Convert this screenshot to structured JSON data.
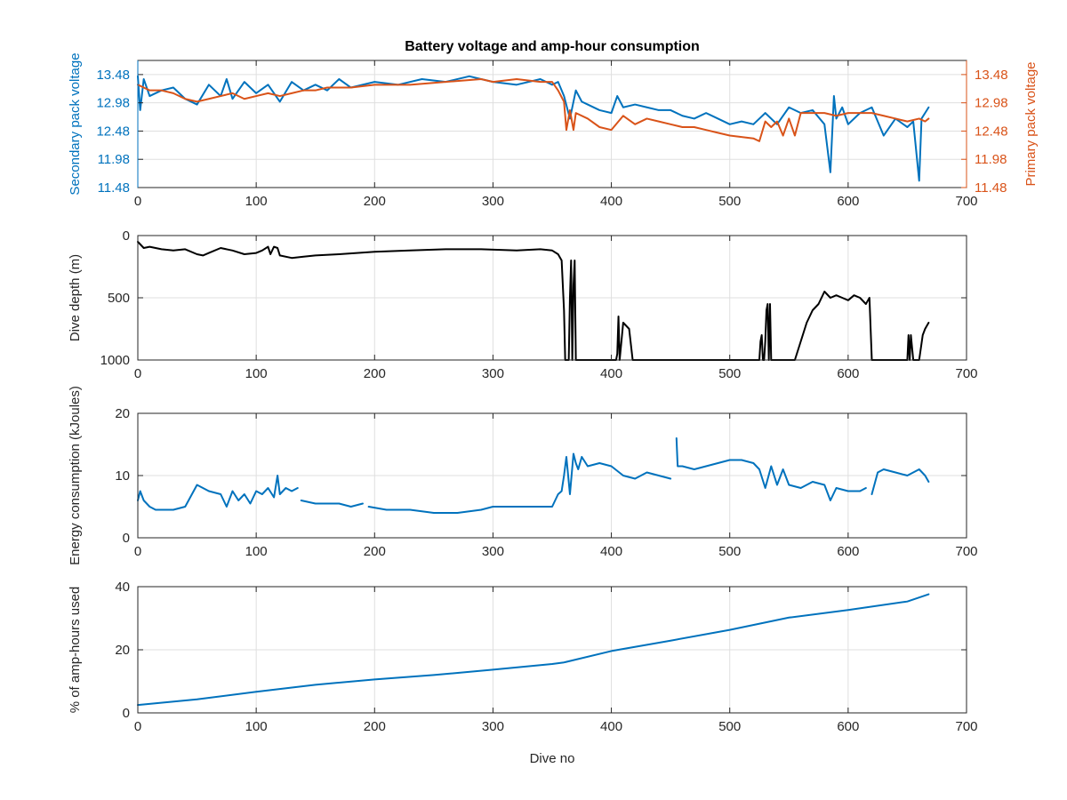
{
  "title": "Battery voltage and amp-hour consumption",
  "colors": {
    "blue": "#0072BD",
    "orange": "#D95319",
    "black": "#000000"
  },
  "chart_data": [
    {
      "type": "line",
      "ylabel": "Secondary pack voltage",
      "y2label": "Primary pack voltage",
      "xlim": [
        0,
        700
      ],
      "xticks": [
        "0",
        "100",
        "200",
        "300",
        "400",
        "500",
        "600",
        "700"
      ],
      "ylim": [
        11.48,
        13.73
      ],
      "yticks": [
        "11.48",
        "11.98",
        "12.48",
        "12.98",
        "13.48"
      ],
      "y2ticks": [
        "11.48",
        "11.98",
        "12.48",
        "12.98",
        "13.48"
      ],
      "grid": true,
      "series": [
        {
          "axis": "left",
          "color": "#0072BD",
          "x": [
            0,
            2,
            5,
            10,
            20,
            30,
            40,
            50,
            60,
            70,
            75,
            80,
            90,
            100,
            110,
            120,
            130,
            140,
            150,
            160,
            170,
            180,
            200,
            220,
            240,
            260,
            280,
            300,
            320,
            340,
            350,
            355,
            360,
            365,
            370,
            375,
            380,
            390,
            400,
            405,
            410,
            420,
            430,
            440,
            450,
            460,
            470,
            480,
            490,
            500,
            510,
            520,
            530,
            540,
            550,
            560,
            570,
            580,
            585,
            588,
            590,
            595,
            600,
            610,
            620,
            630,
            640,
            650,
            655,
            660,
            662,
            665,
            668
          ],
          "y": [
            13.45,
            12.85,
            13.4,
            13.1,
            13.2,
            13.25,
            13.05,
            12.95,
            13.3,
            13.1,
            13.4,
            13.05,
            13.35,
            13.15,
            13.3,
            13.0,
            13.35,
            13.2,
            13.3,
            13.2,
            13.4,
            13.25,
            13.35,
            13.3,
            13.4,
            13.35,
            13.45,
            13.35,
            13.3,
            13.4,
            13.3,
            13.35,
            13.1,
            12.7,
            13.2,
            13.0,
            12.95,
            12.85,
            12.8,
            13.1,
            12.9,
            12.95,
            12.9,
            12.85,
            12.85,
            12.75,
            12.7,
            12.8,
            12.7,
            12.6,
            12.65,
            12.6,
            12.8,
            12.6,
            12.9,
            12.8,
            12.85,
            12.6,
            11.75,
            13.1,
            12.7,
            12.9,
            12.6,
            12.8,
            12.9,
            12.4,
            12.7,
            12.55,
            12.65,
            11.6,
            12.7,
            12.8,
            12.9
          ]
        },
        {
          "axis": "right",
          "color": "#D95319",
          "x": [
            0,
            5,
            10,
            20,
            30,
            40,
            50,
            60,
            70,
            80,
            90,
            100,
            110,
            120,
            130,
            140,
            150,
            160,
            180,
            200,
            230,
            260,
            290,
            300,
            320,
            340,
            350,
            355,
            360,
            362,
            365,
            368,
            370,
            380,
            390,
            400,
            410,
            420,
            430,
            440,
            450,
            460,
            470,
            480,
            490,
            500,
            520,
            525,
            530,
            535,
            540,
            545,
            550,
            555,
            560,
            570,
            580,
            590,
            600,
            610,
            620,
            630,
            640,
            650,
            660,
            665,
            668
          ],
          "y": [
            13.3,
            13.25,
            13.2,
            13.2,
            13.15,
            13.05,
            13.0,
            13.05,
            13.1,
            13.15,
            13.05,
            13.1,
            13.15,
            13.1,
            13.15,
            13.2,
            13.2,
            13.25,
            13.25,
            13.3,
            13.3,
            13.35,
            13.4,
            13.35,
            13.4,
            13.35,
            13.35,
            13.2,
            13.0,
            12.5,
            12.85,
            12.5,
            12.8,
            12.7,
            12.55,
            12.5,
            12.75,
            12.6,
            12.7,
            12.65,
            12.6,
            12.55,
            12.55,
            12.5,
            12.45,
            12.4,
            12.35,
            12.3,
            12.65,
            12.55,
            12.65,
            12.4,
            12.7,
            12.4,
            12.8,
            12.8,
            12.8,
            12.75,
            12.8,
            12.8,
            12.8,
            12.75,
            12.7,
            12.65,
            12.7,
            12.65,
            12.7
          ]
        }
      ]
    },
    {
      "type": "line",
      "ylabel": "Dive depth (m)",
      "xlim": [
        0,
        700
      ],
      "xticks": [
        "0",
        "100",
        "200",
        "300",
        "400",
        "500",
        "600",
        "700"
      ],
      "ylim": [
        1000,
        0
      ],
      "yticks": [
        "0",
        "500",
        "1000"
      ],
      "y_reversed": true,
      "grid": true,
      "series": [
        {
          "axis": "left",
          "color": "#000000",
          "x": [
            0,
            5,
            10,
            20,
            30,
            40,
            50,
            55,
            60,
            70,
            80,
            90,
            100,
            105,
            110,
            112,
            115,
            118,
            120,
            130,
            140,
            150,
            170,
            200,
            230,
            260,
            290,
            320,
            340,
            350,
            355,
            358,
            360,
            361,
            362,
            363,
            364,
            365,
            366,
            367,
            368,
            369,
            370,
            380,
            390,
            400,
            404,
            405,
            406,
            407,
            410,
            415,
            418,
            420,
            430,
            440,
            450,
            460,
            470,
            480,
            490,
            500,
            510,
            520,
            525,
            526,
            527,
            528,
            529,
            530,
            531,
            532,
            533,
            534,
            535,
            536,
            540,
            550,
            553,
            555,
            560,
            565,
            570,
            575,
            580,
            585,
            590,
            595,
            600,
            605,
            610,
            615,
            618,
            620,
            630,
            640,
            650,
            651,
            652,
            653,
            655,
            660,
            663,
            665,
            668
          ],
          "y": [
            50,
            100,
            90,
            110,
            120,
            110,
            150,
            160,
            140,
            100,
            120,
            150,
            140,
            120,
            90,
            150,
            90,
            100,
            160,
            180,
            170,
            160,
            150,
            130,
            120,
            110,
            110,
            120,
            110,
            120,
            150,
            200,
            600,
            1000,
            1000,
            1000,
            1000,
            500,
            200,
            1000,
            400,
            200,
            1000,
            1000,
            1000,
            1000,
            1000,
            950,
            650,
            1000,
            700,
            750,
            1000,
            1000,
            1000,
            1000,
            1000,
            1000,
            1000,
            1000,
            1000,
            1000,
            1000,
            1000,
            1000,
            850,
            800,
            1000,
            1000,
            850,
            600,
            550,
            1000,
            550,
            1000,
            1000,
            1000,
            1000,
            1000,
            1000,
            850,
            700,
            600,
            550,
            450,
            500,
            480,
            500,
            520,
            480,
            500,
            550,
            500,
            1000,
            1000,
            1000,
            1000,
            800,
            1000,
            800,
            1000,
            1000,
            800,
            750,
            700
          ]
        }
      ]
    },
    {
      "type": "line",
      "ylabel": "Energy consumption (kJoules)",
      "xlim": [
        0,
        700
      ],
      "xticks": [
        "0",
        "100",
        "200",
        "300",
        "400",
        "500",
        "600",
        "700"
      ],
      "ylim": [
        0,
        20
      ],
      "yticks": [
        "0",
        "10",
        "20"
      ],
      "grid": true,
      "series": [
        {
          "axis": "left",
          "color": "#0072BD",
          "x": [
            0,
            2,
            5,
            10,
            15,
            20,
            30,
            40,
            50,
            60,
            70,
            75,
            80,
            85,
            90,
            95,
            100,
            105,
            110,
            115,
            118,
            120,
            125,
            130,
            135,
            null,
            138,
            150,
            170,
            180,
            190,
            null,
            195,
            210,
            230,
            250,
            270,
            290,
            300,
            320,
            340,
            350,
            355,
            358,
            360,
            362,
            365,
            368,
            370,
            372,
            375,
            380,
            390,
            400,
            410,
            420,
            430,
            440,
            450,
            null,
            455,
            456,
            460,
            470,
            480,
            490,
            500,
            510,
            520,
            525,
            530,
            535,
            540,
            545,
            550,
            560,
            570,
            580,
            585,
            590,
            600,
            610,
            615,
            null,
            620,
            625,
            630,
            640,
            650,
            660,
            665,
            668
          ],
          "y": [
            6,
            7.5,
            6,
            5,
            4.5,
            4.5,
            4.5,
            5,
            8.5,
            7.5,
            7,
            5,
            7.5,
            6,
            7,
            5.5,
            7.5,
            7,
            8,
            6.5,
            10,
            7,
            8,
            7.5,
            8,
            null,
            6,
            5.5,
            5.5,
            5,
            5.5,
            null,
            5,
            4.5,
            4.5,
            4,
            4,
            4.5,
            5,
            5,
            5,
            5,
            7,
            7.5,
            10,
            13,
            7,
            13.5,
            12,
            11,
            13,
            11.5,
            12,
            11.5,
            10,
            9.5,
            10.5,
            10,
            9.5,
            null,
            16,
            11.5,
            11.5,
            11,
            11.5,
            12,
            12.5,
            12.5,
            12,
            11,
            8,
            11.5,
            8.5,
            11,
            8.5,
            8,
            9,
            8.5,
            6,
            8,
            7.5,
            7.5,
            8,
            null,
            7,
            10.5,
            11,
            10.5,
            10,
            11,
            10,
            9
          ]
        }
      ]
    },
    {
      "type": "line",
      "ylabel": "% of amp-hours used",
      "xlabel": "Dive no",
      "xlim": [
        0,
        700
      ],
      "xticks": [
        "0",
        "100",
        "200",
        "300",
        "400",
        "500",
        "600",
        "700"
      ],
      "ylim": [
        0,
        40
      ],
      "yticks": [
        "0",
        "20",
        "40"
      ],
      "grid": true,
      "series": [
        {
          "axis": "left",
          "color": "#0072BD",
          "x": [
            0,
            50,
            100,
            150,
            200,
            250,
            300,
            350,
            360,
            400,
            450,
            500,
            550,
            600,
            650,
            668
          ],
          "y": [
            2.5,
            4.3,
            6.7,
            8.9,
            10.6,
            12.0,
            13.7,
            15.5,
            16.0,
            19.6,
            22.9,
            26.3,
            30.2,
            32.6,
            35.3,
            37.6
          ]
        }
      ]
    }
  ]
}
